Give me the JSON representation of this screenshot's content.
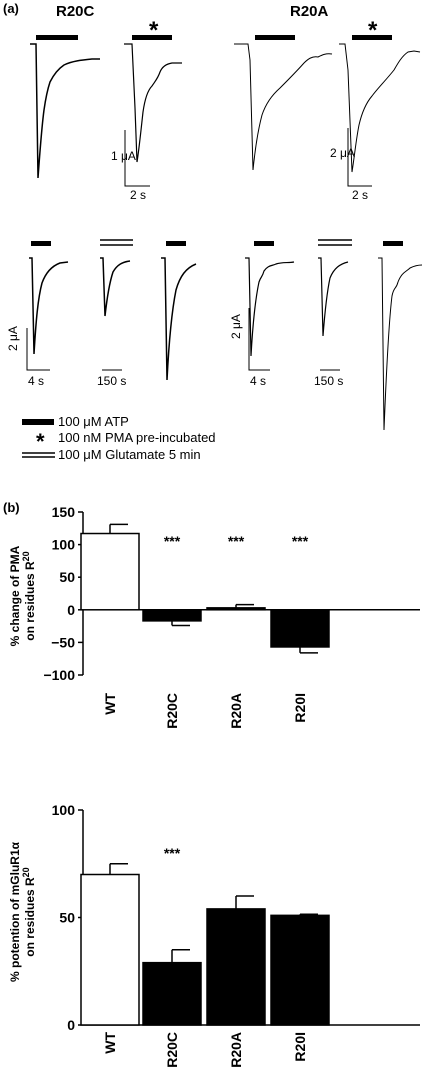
{
  "panel_a": {
    "label": "(a)",
    "groups": [
      "R20C",
      "R20A"
    ],
    "asterisk": "*",
    "scale_bars": {
      "top_left": {
        "y": "1 μA",
        "x": "2 s"
      },
      "top_right": {
        "y": "2 μA",
        "x": "2 s"
      },
      "bottom_left": {
        "y": "2 μA",
        "x1": "4 s",
        "x2": "150 s"
      },
      "bottom_right": {
        "y": "2 μA",
        "x1": "4 s",
        "x2": "150 s"
      }
    },
    "legend": [
      {
        "symbol": "bar",
        "text": "100 μM ATP"
      },
      {
        "symbol": "asterisk",
        "text": "100 nM PMA pre-incubated"
      },
      {
        "symbol": "double-line",
        "text": "100 μM Glutamate 5 min"
      }
    ]
  },
  "panel_b": {
    "label": "(b)"
  },
  "chart_data": [
    {
      "type": "bar",
      "ylabel_line1": "% change of PMA",
      "ylabel_line2": "on residues R",
      "ylabel_sup": "20",
      "categories": [
        "WT",
        "R20C",
        "R20A",
        "R20I"
      ],
      "values": [
        117,
        -17,
        3,
        -57
      ],
      "errors": [
        14,
        7,
        5,
        9
      ],
      "fills": [
        "#ffffff",
        "#000000",
        "#000000",
        "#000000"
      ],
      "significance": [
        "",
        "***",
        "***",
        "***"
      ],
      "ylim": [
        -100,
        150
      ],
      "yticks": [
        -100,
        -50,
        0,
        50,
        100,
        150
      ],
      "ytick_labels": [
        "−100",
        "−50",
        "0",
        "50",
        "100",
        "150"
      ]
    },
    {
      "type": "bar",
      "ylabel_line1": "% potention of mGluR1α",
      "ylabel_line2": "on residues R",
      "ylabel_sup": "20",
      "categories": [
        "WT",
        "R20C",
        "R20A",
        "R20I"
      ],
      "values": [
        70,
        29,
        54,
        51
      ],
      "errors": [
        5,
        6,
        6,
        0.5
      ],
      "fills": [
        "#ffffff",
        "#000000",
        "#000000",
        "#000000"
      ],
      "significance": [
        "",
        "***",
        "",
        ""
      ],
      "ylim": [
        0,
        100
      ],
      "yticks": [
        0,
        50,
        100
      ],
      "ytick_labels": [
        "0",
        "50",
        "100"
      ]
    }
  ]
}
